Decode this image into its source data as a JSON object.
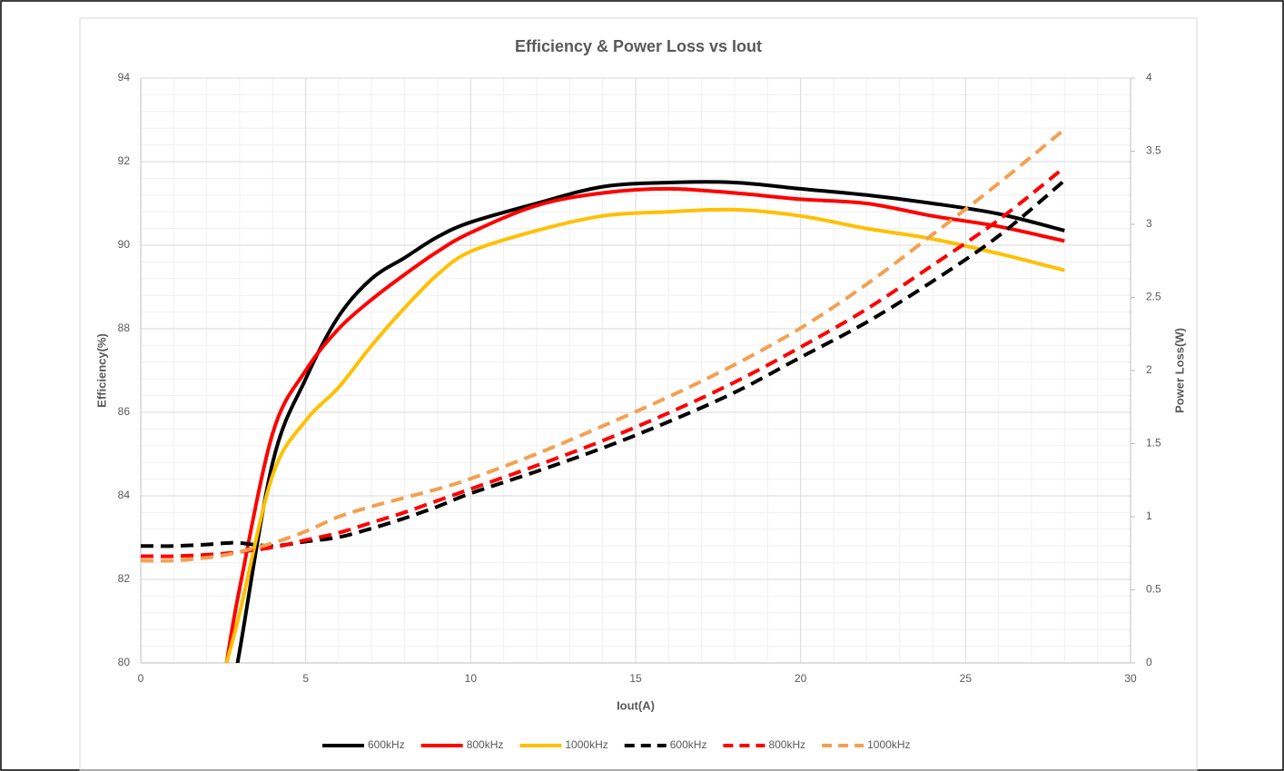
{
  "chart_data": {
    "type": "line",
    "title": "Efficiency & Power Loss vs Iout",
    "x_label": "Iout(A)",
    "y_label": "Efficiency(%)",
    "y2_label": "Power Loss(W)",
    "x": [
      0,
      1,
      2,
      2.6,
      3,
      4,
      5,
      6,
      7,
      8,
      9,
      10,
      12,
      14,
      16,
      18,
      20,
      22,
      24,
      26,
      28
    ],
    "xlim": [
      0,
      30
    ],
    "xticks": [
      0,
      5,
      10,
      15,
      20,
      25,
      30
    ],
    "ylim": [
      80,
      94
    ],
    "yticks": [
      80,
      82,
      84,
      86,
      88,
      90,
      92,
      94
    ],
    "y2lim": [
      0,
      4
    ],
    "y2ticks": [
      0,
      0.5,
      1,
      1.5,
      2,
      2.5,
      3,
      3.5,
      4
    ],
    "grid": true,
    "minor_grid": true,
    "legend": "bottom",
    "series": [
      {
        "name": "600kHz",
        "color": "#000000",
        "dashed": false,
        "values": [
          null,
          null,
          null,
          78.5,
          80.3,
          84.8,
          86.8,
          88.3,
          89.2,
          89.7,
          90.2,
          90.55,
          91.0,
          91.4,
          91.5,
          91.5,
          91.35,
          91.2,
          91.0,
          90.75,
          90.35
        ]
      },
      {
        "name": "800kHz",
        "color": "#ff0000",
        "dashed": false,
        "values": [
          null,
          null,
          null,
          80,
          81.8,
          85.5,
          87.0,
          88.0,
          88.7,
          89.3,
          89.85,
          90.3,
          90.95,
          91.25,
          91.35,
          91.25,
          91.1,
          91.0,
          90.7,
          90.45,
          90.1
        ]
      },
      {
        "name": "1000kHz",
        "color": "#ffc000",
        "dashed": false,
        "values": [
          null,
          null,
          null,
          80,
          81.2,
          84.5,
          85.8,
          86.6,
          87.6,
          88.5,
          89.3,
          89.85,
          90.35,
          90.7,
          90.8,
          90.85,
          90.7,
          90.4,
          90.15,
          89.8,
          89.4
        ]
      },
      {
        "name": "600kHz",
        "color": "#000000",
        "dashed": true,
        "axis": "y2",
        "values": [
          0.8,
          0.8,
          0.81,
          0.82,
          0.82,
          0.8,
          0.83,
          0.86,
          0.92,
          0.99,
          1.07,
          1.16,
          1.31,
          1.47,
          1.65,
          1.85,
          2.09,
          2.33,
          2.61,
          2.92,
          3.3
        ]
      },
      {
        "name": "800kHz",
        "color": "#ff0000",
        "dashed": true,
        "axis": "y2",
        "values": [
          0.73,
          0.73,
          0.74,
          0.75,
          0.76,
          0.79,
          0.84,
          0.89,
          0.96,
          1.03,
          1.11,
          1.19,
          1.35,
          1.52,
          1.71,
          1.92,
          2.16,
          2.42,
          2.72,
          3.03,
          3.39
        ]
      },
      {
        "name": "1000kHz",
        "color": "#f4a050",
        "dashed": true,
        "axis": "y2",
        "values": [
          0.7,
          0.7,
          0.72,
          0.74,
          0.76,
          0.82,
          0.9,
          1.0,
          1.07,
          1.13,
          1.19,
          1.26,
          1.43,
          1.62,
          1.82,
          2.04,
          2.29,
          2.59,
          2.93,
          3.28,
          3.65
        ]
      }
    ]
  }
}
